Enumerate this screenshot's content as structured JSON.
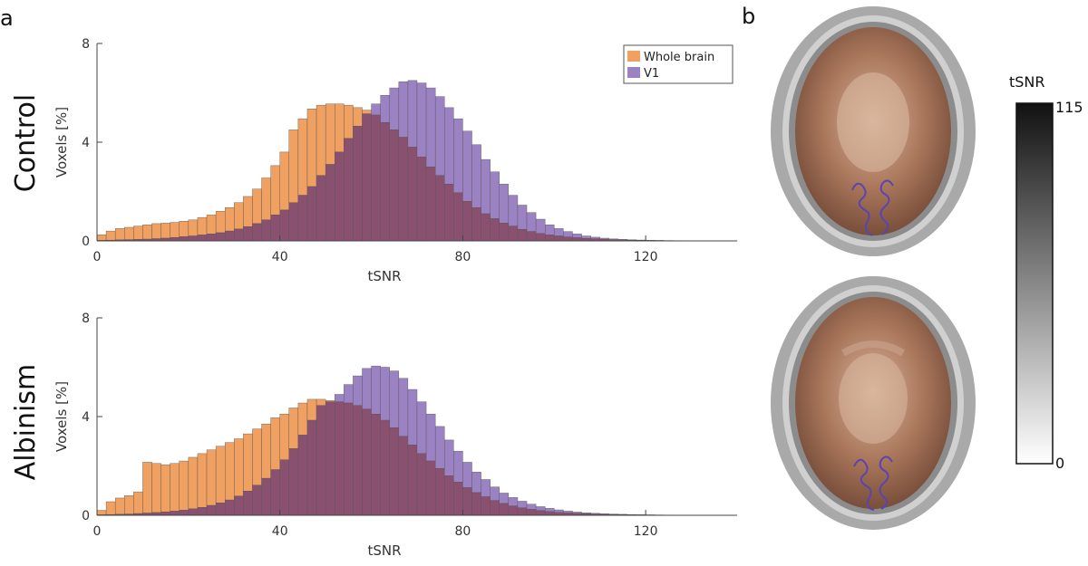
{
  "figure": {
    "panel_a": "a",
    "panel_b": "b",
    "row_labels": [
      "Control",
      "Albinism"
    ]
  },
  "legend": {
    "items": [
      {
        "label": "Whole brain",
        "color": "#f0a060"
      },
      {
        "label": "V1",
        "color": "#9b82c2"
      }
    ]
  },
  "colorbar": {
    "title": "tSNR",
    "max_label": "115",
    "min_label": "0",
    "top_color": "#111111",
    "bottom_color": "#ffffff"
  },
  "colors": {
    "whole_brain": "#f0a060",
    "v1": "#9b82c2",
    "overlap": "#8a5070"
  },
  "chart_data": [
    {
      "type": "bar",
      "id": "control",
      "title": "Control",
      "xlabel": "tSNR",
      "ylabel": "Voxels [%]",
      "xlim": [
        0,
        140
      ],
      "ylim": [
        0,
        8
      ],
      "xticks": [
        0,
        40,
        80,
        120
      ],
      "yticks": [
        0,
        4,
        8
      ],
      "bin_width": 2,
      "bin_start": 0,
      "series": [
        {
          "name": "Whole brain",
          "values": [
            0.25,
            0.4,
            0.5,
            0.55,
            0.6,
            0.65,
            0.7,
            0.72,
            0.75,
            0.8,
            0.85,
            0.95,
            1.05,
            1.2,
            1.35,
            1.55,
            1.8,
            2.1,
            2.55,
            3.05,
            3.6,
            4.5,
            4.95,
            5.35,
            5.5,
            5.55,
            5.55,
            5.5,
            5.4,
            5.3,
            5.1,
            4.8,
            4.5,
            4.2,
            3.8,
            3.4,
            3.0,
            2.65,
            2.3,
            1.95,
            1.6,
            1.35,
            1.1,
            0.9,
            0.72,
            0.6,
            0.47,
            0.38,
            0.3,
            0.24,
            0.2,
            0.16,
            0.13,
            0.1,
            0.08,
            0.06,
            0.05,
            0.04,
            0.03,
            0.025,
            0.02,
            0.015,
            0.01,
            0.01,
            0.005,
            0.005,
            0.005,
            0.004,
            0.003,
            0.002
          ]
        },
        {
          "name": "V1",
          "values": [
            0.02,
            0.03,
            0.04,
            0.05,
            0.06,
            0.07,
            0.09,
            0.11,
            0.14,
            0.17,
            0.2,
            0.24,
            0.28,
            0.33,
            0.4,
            0.48,
            0.58,
            0.7,
            0.85,
            1.05,
            1.25,
            1.55,
            1.85,
            2.2,
            2.65,
            3.1,
            3.6,
            4.15,
            4.65,
            5.15,
            5.55,
            5.9,
            6.2,
            6.45,
            6.5,
            6.4,
            6.2,
            5.85,
            5.4,
            4.95,
            4.45,
            3.9,
            3.3,
            2.8,
            2.3,
            1.85,
            1.45,
            1.15,
            0.88,
            0.65,
            0.5,
            0.38,
            0.28,
            0.2,
            0.15,
            0.11,
            0.08,
            0.06,
            0.045,
            0.035,
            0.025,
            0.02,
            0.015,
            0.012,
            0.01,
            0.008,
            0.006,
            0.005,
            0.004,
            0.003
          ]
        }
      ]
    },
    {
      "type": "bar",
      "id": "albinism",
      "title": "Albinism",
      "xlabel": "tSNR",
      "ylabel": "Voxels [%]",
      "xlim": [
        0,
        140
      ],
      "ylim": [
        0,
        8
      ],
      "xticks": [
        0,
        40,
        80,
        120
      ],
      "yticks": [
        0,
        4,
        8
      ],
      "bin_width": 2,
      "bin_start": 0,
      "series": [
        {
          "name": "Whole brain",
          "values": [
            0.2,
            0.55,
            0.7,
            0.8,
            0.95,
            2.15,
            2.1,
            2.05,
            2.1,
            2.2,
            2.35,
            2.5,
            2.65,
            2.8,
            2.95,
            3.1,
            3.3,
            3.5,
            3.7,
            3.95,
            4.1,
            4.35,
            4.55,
            4.7,
            4.7,
            4.65,
            4.6,
            4.55,
            4.45,
            4.3,
            4.1,
            3.85,
            3.55,
            3.2,
            2.85,
            2.5,
            2.2,
            1.9,
            1.6,
            1.35,
            1.12,
            0.92,
            0.75,
            0.6,
            0.48,
            0.38,
            0.3,
            0.24,
            0.19,
            0.15,
            0.12,
            0.1,
            0.08,
            0.06,
            0.05,
            0.04,
            0.03,
            0.025,
            0.02,
            0.015,
            0.012,
            0.01,
            0.008,
            0.006,
            0.005,
            0.004,
            0.003,
            0.003,
            0.002,
            0.002
          ]
        },
        {
          "name": "V1",
          "values": [
            0.02,
            0.03,
            0.04,
            0.05,
            0.07,
            0.09,
            0.11,
            0.14,
            0.17,
            0.21,
            0.26,
            0.32,
            0.4,
            0.5,
            0.62,
            0.78,
            0.98,
            1.22,
            1.5,
            1.85,
            2.25,
            2.7,
            3.25,
            3.85,
            4.45,
            4.6,
            4.9,
            5.3,
            5.65,
            5.95,
            6.05,
            6.0,
            5.85,
            5.55,
            5.1,
            4.6,
            4.1,
            3.6,
            3.05,
            2.6,
            2.15,
            1.75,
            1.45,
            1.15,
            0.9,
            0.72,
            0.57,
            0.45,
            0.35,
            0.28,
            0.22,
            0.17,
            0.13,
            0.1,
            0.08,
            0.06,
            0.05,
            0.04,
            0.03,
            0.025,
            0.02,
            0.015,
            0.012,
            0.01,
            0.008,
            0.006,
            0.005,
            0.004,
            0.003,
            0.002
          ]
        }
      ]
    }
  ]
}
